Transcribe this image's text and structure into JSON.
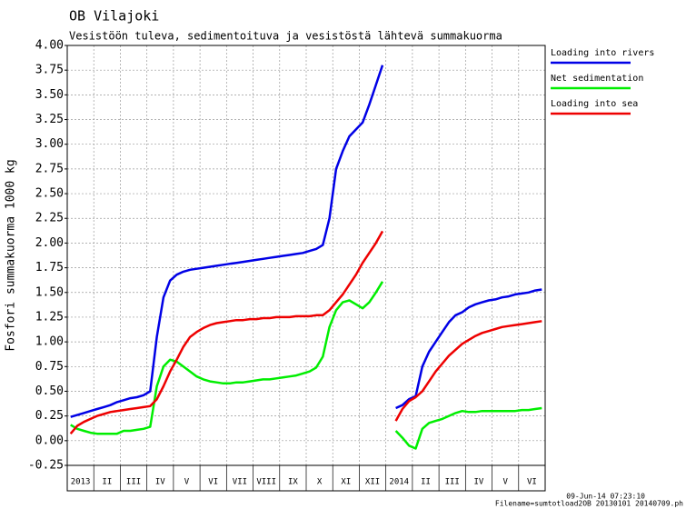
{
  "chart_data": {
    "type": "line",
    "title": "OB Vilajoki",
    "subtitle": "Vesistöön tuleva, sedimentoituva ja vesistöstä lähtevä summakuorma",
    "ylabel": "Fosfori summakuorma 1000 kg",
    "footnotes": [
      "09-Jun-14 07:23:10",
      "Filename=sumtotload2OB 20130101 20140709.ph"
    ],
    "categories": [
      "2013",
      null,
      null,
      null,
      "II",
      null,
      null,
      null,
      "III",
      null,
      null,
      null,
      "IV",
      null,
      null,
      null,
      "V",
      null,
      null,
      null,
      "VI",
      null,
      null,
      null,
      "VII",
      null,
      null,
      null,
      "VIII",
      null,
      null,
      null,
      "IX",
      null,
      null,
      null,
      "X",
      null,
      null,
      null,
      "XI",
      null,
      null,
      null,
      "XII",
      null,
      null,
      null,
      "2014",
      null,
      null,
      null,
      "II",
      null,
      null,
      null,
      "III",
      null,
      null,
      null,
      "IV",
      null,
      null,
      null,
      "V",
      null,
      null,
      null,
      "VI",
      null,
      null,
      null
    ],
    "series": [
      {
        "name": "Loading into rivers",
        "color": "#0000e6",
        "values": [
          0.24,
          0.26,
          0.28,
          0.3,
          0.32,
          0.34,
          0.36,
          0.39,
          0.41,
          0.43,
          0.44,
          0.46,
          0.5,
          1.05,
          1.45,
          1.62,
          1.68,
          1.71,
          1.73,
          1.74,
          1.75,
          1.76,
          1.77,
          1.78,
          1.79,
          1.8,
          1.81,
          1.82,
          1.83,
          1.84,
          1.85,
          1.86,
          1.87,
          1.88,
          1.89,
          1.9,
          1.92,
          1.94,
          1.98,
          2.25,
          2.75,
          2.93,
          3.08,
          3.15,
          3.22,
          3.4,
          3.6,
          3.8,
          null,
          0.33,
          0.36,
          0.42,
          0.45,
          0.75,
          0.9,
          1.0,
          1.1,
          1.2,
          1.27,
          1.3,
          1.35,
          1.38,
          1.4,
          1.42,
          1.43,
          1.45,
          1.46,
          1.48,
          1.49,
          1.5,
          1.52,
          1.53
        ]
      },
      {
        "name": "Net sedimentation",
        "color": "#00ee00",
        "values": [
          0.16,
          0.12,
          0.1,
          0.08,
          0.07,
          0.07,
          0.07,
          0.07,
          0.1,
          0.1,
          0.11,
          0.12,
          0.14,
          0.55,
          0.75,
          0.82,
          0.8,
          0.75,
          0.7,
          0.65,
          0.62,
          0.6,
          0.59,
          0.58,
          0.58,
          0.59,
          0.59,
          0.6,
          0.61,
          0.62,
          0.62,
          0.63,
          0.64,
          0.65,
          0.66,
          0.68,
          0.7,
          0.74,
          0.85,
          1.15,
          1.32,
          1.4,
          1.42,
          1.38,
          1.34,
          1.4,
          1.5,
          1.61,
          null,
          0.1,
          0.03,
          -0.05,
          -0.08,
          0.12,
          0.18,
          0.2,
          0.22,
          0.25,
          0.28,
          0.3,
          0.29,
          0.29,
          0.3,
          0.3,
          0.3,
          0.3,
          0.3,
          0.3,
          0.31,
          0.31,
          0.32,
          0.33
        ]
      },
      {
        "name": "Loading into sea",
        "color": "#ee0000",
        "values": [
          0.07,
          0.15,
          0.19,
          0.22,
          0.25,
          0.27,
          0.29,
          0.3,
          0.31,
          0.32,
          0.33,
          0.34,
          0.35,
          0.42,
          0.55,
          0.7,
          0.82,
          0.95,
          1.05,
          1.1,
          1.14,
          1.17,
          1.19,
          1.2,
          1.21,
          1.22,
          1.22,
          1.23,
          1.23,
          1.24,
          1.24,
          1.25,
          1.25,
          1.25,
          1.26,
          1.26,
          1.26,
          1.27,
          1.27,
          1.32,
          1.4,
          1.48,
          1.58,
          1.68,
          1.8,
          1.9,
          2.0,
          2.12,
          null,
          0.2,
          0.32,
          0.4,
          0.44,
          0.5,
          0.6,
          0.7,
          0.78,
          0.86,
          0.92,
          0.98,
          1.02,
          1.06,
          1.09,
          1.11,
          1.13,
          1.15,
          1.16,
          1.17,
          1.18,
          1.19,
          1.2,
          1.21
        ]
      }
    ],
    "ylim": [
      -0.25,
      4.0
    ],
    "yticks": [
      -0.25,
      {
        "value": 0,
        "label": "0.00"
      },
      0.25,
      {
        "value": 0.5,
        "label": "0.50"
      },
      0.75,
      {
        "value": 1,
        "label": "1.00"
      },
      1.25,
      {
        "value": 1.5,
        "label": "1.50"
      },
      1.75,
      {
        "value": 2,
        "label": "2.00"
      },
      2.25,
      {
        "value": 2.5,
        "label": "2.50"
      },
      2.75,
      {
        "value": 3,
        "label": "3.00"
      },
      3.25,
      {
        "value": 3.5,
        "label": "3.50"
      },
      3.75,
      {
        "value": 4,
        "label": "4.00"
      }
    ],
    "grid": true,
    "legend": "right"
  }
}
